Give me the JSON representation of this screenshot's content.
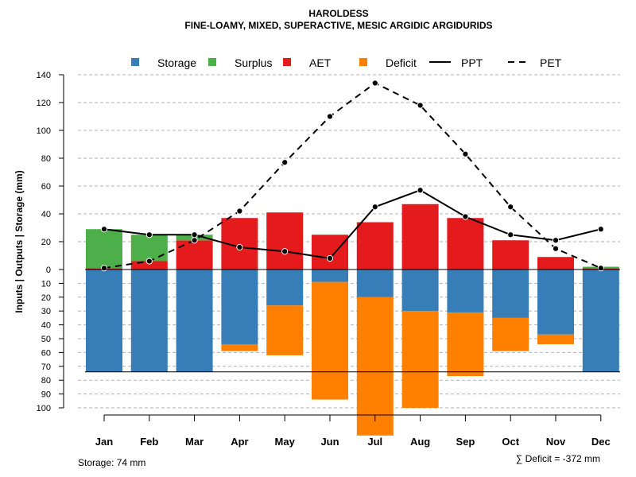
{
  "chart_data": {
    "type": "bar",
    "title": "HAROLDESS",
    "subtitle": "FINE-LOAMY, MIXED, SUPERACTIVE, MESIC ARGIDIC ARGIDURIDS",
    "ylabel": "Inputs | Outputs | Storage     (mm)",
    "categories": [
      "Jan",
      "Feb",
      "Mar",
      "Apr",
      "May",
      "Jun",
      "Jul",
      "Aug",
      "Sep",
      "Oct",
      "Nov",
      "Dec"
    ],
    "upper_ticks": [
      "0",
      "20",
      "40",
      "60",
      "80",
      "100",
      "120",
      "140"
    ],
    "lower_ticks": [
      "10",
      "20",
      "30",
      "40",
      "50",
      "60",
      "70",
      "80",
      "90",
      "100"
    ],
    "ylim_upper": [
      0,
      140
    ],
    "ylim_lower": [
      0,
      100
    ],
    "series": [
      {
        "name": "Storage",
        "color": "#377EB8",
        "values": [
          74,
          74,
          74,
          54,
          26,
          9,
          20,
          30,
          31,
          35,
          47,
          74
        ]
      },
      {
        "name": "Surplus",
        "color": "#4DAF4A",
        "values": [
          28,
          19,
          4,
          0,
          0,
          0,
          0,
          0,
          0,
          0,
          0,
          1
        ]
      },
      {
        "name": "AET",
        "color": "#E41A1C",
        "values": [
          1,
          6,
          21,
          37,
          41,
          25,
          34,
          47,
          37,
          21,
          9,
          1
        ]
      },
      {
        "name": "Deficit",
        "color": "#FF7F00",
        "values": [
          0,
          0,
          0,
          5,
          36,
          85,
          100,
          70,
          46,
          24,
          7,
          0
        ]
      },
      {
        "name": "PPT",
        "color": "#000000",
        "line": "solid",
        "values": [
          29,
          25,
          25,
          16,
          13,
          8,
          45,
          57,
          38,
          25,
          21,
          29
        ]
      },
      {
        "name": "PET",
        "color": "#000000",
        "line": "dashed",
        "values": [
          1,
          6,
          21,
          42,
          77,
          110,
          134,
          118,
          83,
          45,
          15,
          1
        ]
      }
    ],
    "storage_capacity": 74,
    "grid": true,
    "legend": "top",
    "storage_note": "Storage: 74 mm",
    "deficit_note": "∑ Deficit = -372 mm"
  }
}
